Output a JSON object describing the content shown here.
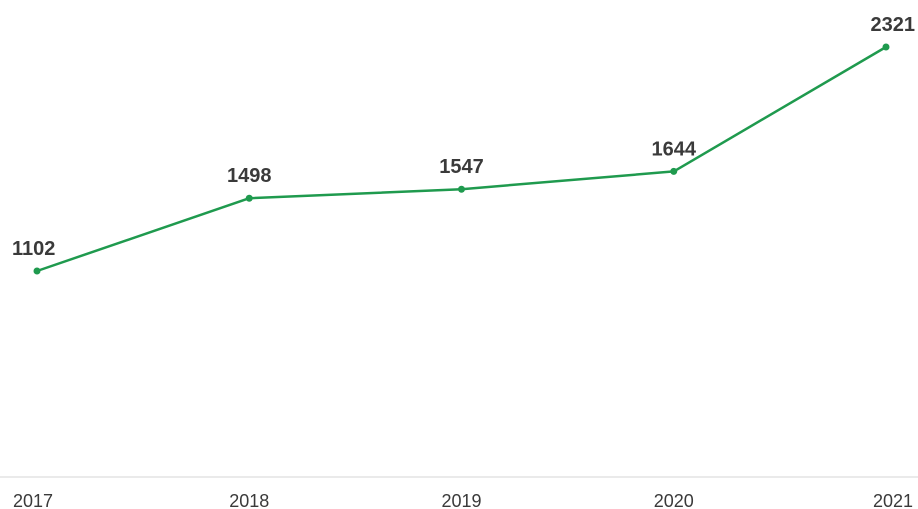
{
  "colors": {
    "line": "#1f9a4e",
    "axis": "#d6d6d6",
    "text": "#3a3a3a"
  },
  "chart_data": {
    "type": "line",
    "x": [
      "2017",
      "2018",
      "2019",
      "2020",
      "2021"
    ],
    "series": [
      {
        "values": [
          1102,
          1498,
          1547,
          1644,
          2321
        ]
      }
    ],
    "title": "",
    "xlabel": "",
    "ylabel": "",
    "grid": false,
    "data_labels": true
  }
}
